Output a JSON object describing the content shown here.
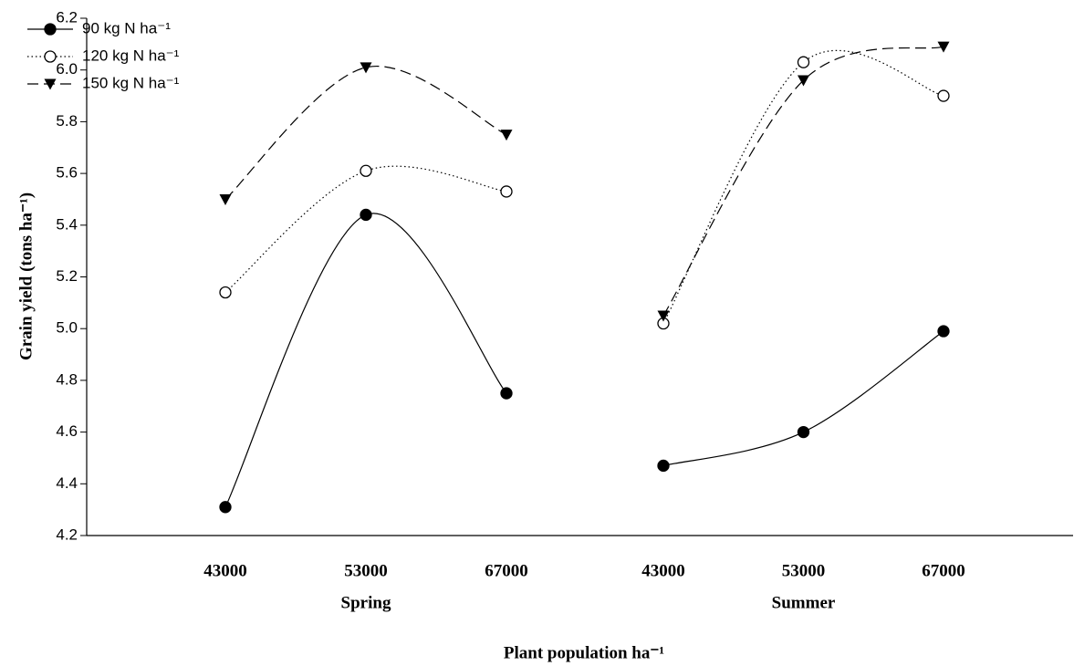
{
  "chart_data": {
    "type": "line",
    "x_label": "Plant population ha⁻¹",
    "y_label": "Grain yield (tons ha⁻¹)",
    "categories": [
      "43000",
      "53000",
      "67000",
      null,
      "43000",
      "53000",
      "67000"
    ],
    "group_labels": [
      "Spring",
      "Summer"
    ],
    "ylim": [
      4.2,
      6.2
    ],
    "yticks": [
      4.2,
      4.4,
      4.6,
      4.8,
      {
        "value": 5,
        "label": "5.0"
      },
      5.2,
      5.4,
      5.6,
      5.8,
      {
        "value": 6,
        "label": "6.0"
      },
      6.2
    ],
    "legend": "upper left",
    "series": [
      {
        "name": "90 kg N ha⁻¹",
        "color": "#000000",
        "marker": "circle-filled",
        "dash": "solid",
        "values": [
          4.31,
          5.44,
          4.75,
          null,
          4.47,
          4.6,
          4.99
        ]
      },
      {
        "name": "120 kg N ha⁻¹",
        "color": "#000000",
        "marker": "circle-open",
        "dash": "dotted",
        "values": [
          5.14,
          5.61,
          5.53,
          null,
          5.02,
          6.03,
          5.9
        ]
      },
      {
        "name": "150 kg N ha⁻¹",
        "color": "#000000",
        "marker": "triangle-down",
        "dash": "dashed",
        "values": [
          5.5,
          6.01,
          5.75,
          null,
          5.05,
          5.96,
          6.09
        ]
      }
    ]
  }
}
